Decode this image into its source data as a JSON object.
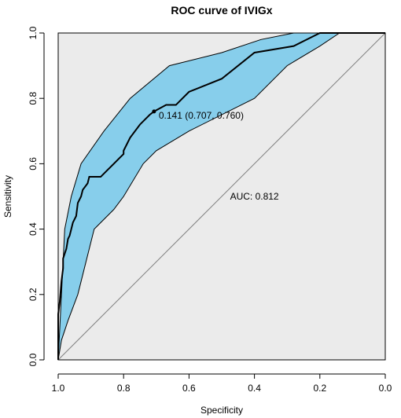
{
  "chart_data": {
    "type": "line",
    "title": "ROC curve of IVIGx",
    "xlabel": "Specificity",
    "ylabel": "Sensitivity",
    "x_reversed": true,
    "xlim": [
      1.0,
      0.0
    ],
    "ylim": [
      0.0,
      1.0
    ],
    "x_ticks": [
      "1.0",
      "0.8",
      "0.6",
      "0.4",
      "0.2",
      "0.0"
    ],
    "y_ticks": [
      "0.0",
      "0.2",
      "0.4",
      "0.6",
      "0.8",
      "1.0"
    ],
    "grid": false,
    "colors": {
      "panel": "#ebebeb",
      "ci_band": "#87ceeb",
      "curve": "#000000",
      "diagonal": "#808080"
    },
    "diagonal": {
      "x": [
        1.0,
        0.0
      ],
      "y": [
        0.0,
        1.0
      ]
    },
    "roc_curve": {
      "x": [
        1.0,
        1.0,
        0.995,
        0.99,
        0.985,
        0.985,
        0.975,
        0.97,
        0.965,
        0.96,
        0.955,
        0.945,
        0.94,
        0.93,
        0.925,
        0.91,
        0.905,
        0.89,
        0.87,
        0.85,
        0.83,
        0.81,
        0.8,
        0.8,
        0.78,
        0.75,
        0.72,
        0.707,
        0.67,
        0.64,
        0.62,
        0.6,
        0.5,
        0.4,
        0.28,
        0.2,
        0.15,
        0.0
      ],
      "y": [
        0.0,
        0.14,
        0.18,
        0.24,
        0.28,
        0.31,
        0.34,
        0.37,
        0.38,
        0.4,
        0.42,
        0.44,
        0.48,
        0.5,
        0.52,
        0.54,
        0.56,
        0.56,
        0.56,
        0.58,
        0.6,
        0.62,
        0.63,
        0.64,
        0.68,
        0.72,
        0.75,
        0.76,
        0.78,
        0.78,
        0.8,
        0.82,
        0.86,
        0.94,
        0.96,
        1.0,
        1.0,
        1.0
      ]
    },
    "ci_upper": {
      "x": [
        1.0,
        0.99,
        0.98,
        0.96,
        0.93,
        0.86,
        0.78,
        0.66,
        0.5,
        0.38,
        0.28,
        0.18,
        0.14,
        0.0
      ],
      "y": [
        0.0,
        0.2,
        0.4,
        0.5,
        0.6,
        0.7,
        0.8,
        0.9,
        0.94,
        0.98,
        1.0,
        1.0,
        1.0,
        1.0
      ]
    },
    "ci_lower": {
      "x": [
        1.0,
        0.99,
        0.97,
        0.94,
        0.89,
        0.83,
        0.8,
        0.74,
        0.7,
        0.6,
        0.4,
        0.3,
        0.2,
        0.14,
        0.0
      ],
      "y": [
        0.0,
        0.06,
        0.12,
        0.2,
        0.4,
        0.46,
        0.5,
        0.6,
        0.64,
        0.7,
        0.8,
        0.9,
        0.96,
        1.0,
        1.0
      ]
    },
    "best_threshold": {
      "x": 0.707,
      "y": 0.76,
      "label": "0.141 (0.707, 0.760)"
    },
    "auc_label": "AUC: 0.812",
    "auc_label_position": {
      "x": 0.4,
      "y": 0.5
    }
  }
}
